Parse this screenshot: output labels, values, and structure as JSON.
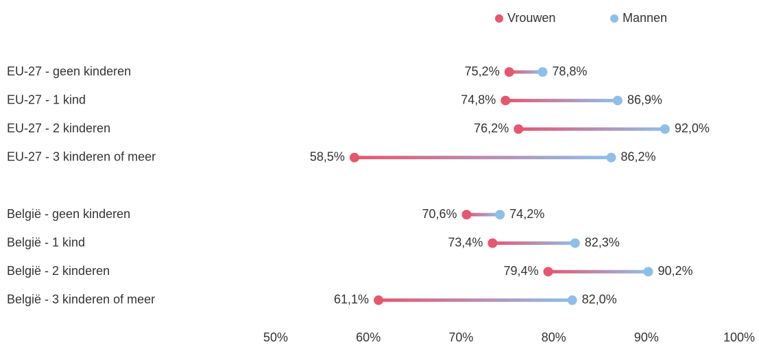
{
  "chart_data": {
    "type": "dumbbell",
    "categories": [
      "EU-27 - geen kinderen",
      "EU-27 - 1 kind",
      "EU-27 - 2 kinderen",
      "EU-27 - 3 kinderen of meer",
      null,
      "België - geen kinderen",
      "België - 1 kind",
      "België - 2 kinderen",
      "België - 3 kinderen of meer"
    ],
    "series": [
      {
        "name": "Vrouwen",
        "color": "#e5576f",
        "values": [
          75.2,
          74.8,
          76.2,
          58.5,
          null,
          70.6,
          73.4,
          79.4,
          61.1
        ],
        "value_labels": [
          "75,2%",
          "74,8%",
          "76,2%",
          "58,5%",
          null,
          "70,6%",
          "73,4%",
          "79,4%",
          "61,1%"
        ]
      },
      {
        "name": "Mannen",
        "color": "#8fbfe9",
        "values": [
          78.8,
          86.9,
          92.0,
          86.2,
          null,
          74.2,
          82.3,
          90.2,
          82.0
        ],
        "value_labels": [
          "78,8%",
          "86,9%",
          "92,0%",
          "86,2%",
          null,
          "74,2%",
          "82,3%",
          "90,2%",
          "82,0%"
        ]
      }
    ],
    "xlim": [
      50,
      100
    ],
    "xticks": [
      {
        "value": 50,
        "label": "50%"
      },
      {
        "value": 60,
        "label": "60%"
      },
      {
        "value": 70,
        "label": "70%"
      },
      {
        "value": 80,
        "label": "80%"
      },
      {
        "value": 90,
        "label": "90%"
      },
      {
        "value": 100,
        "label": "100%"
      }
    ],
    "legend": "top-right"
  }
}
